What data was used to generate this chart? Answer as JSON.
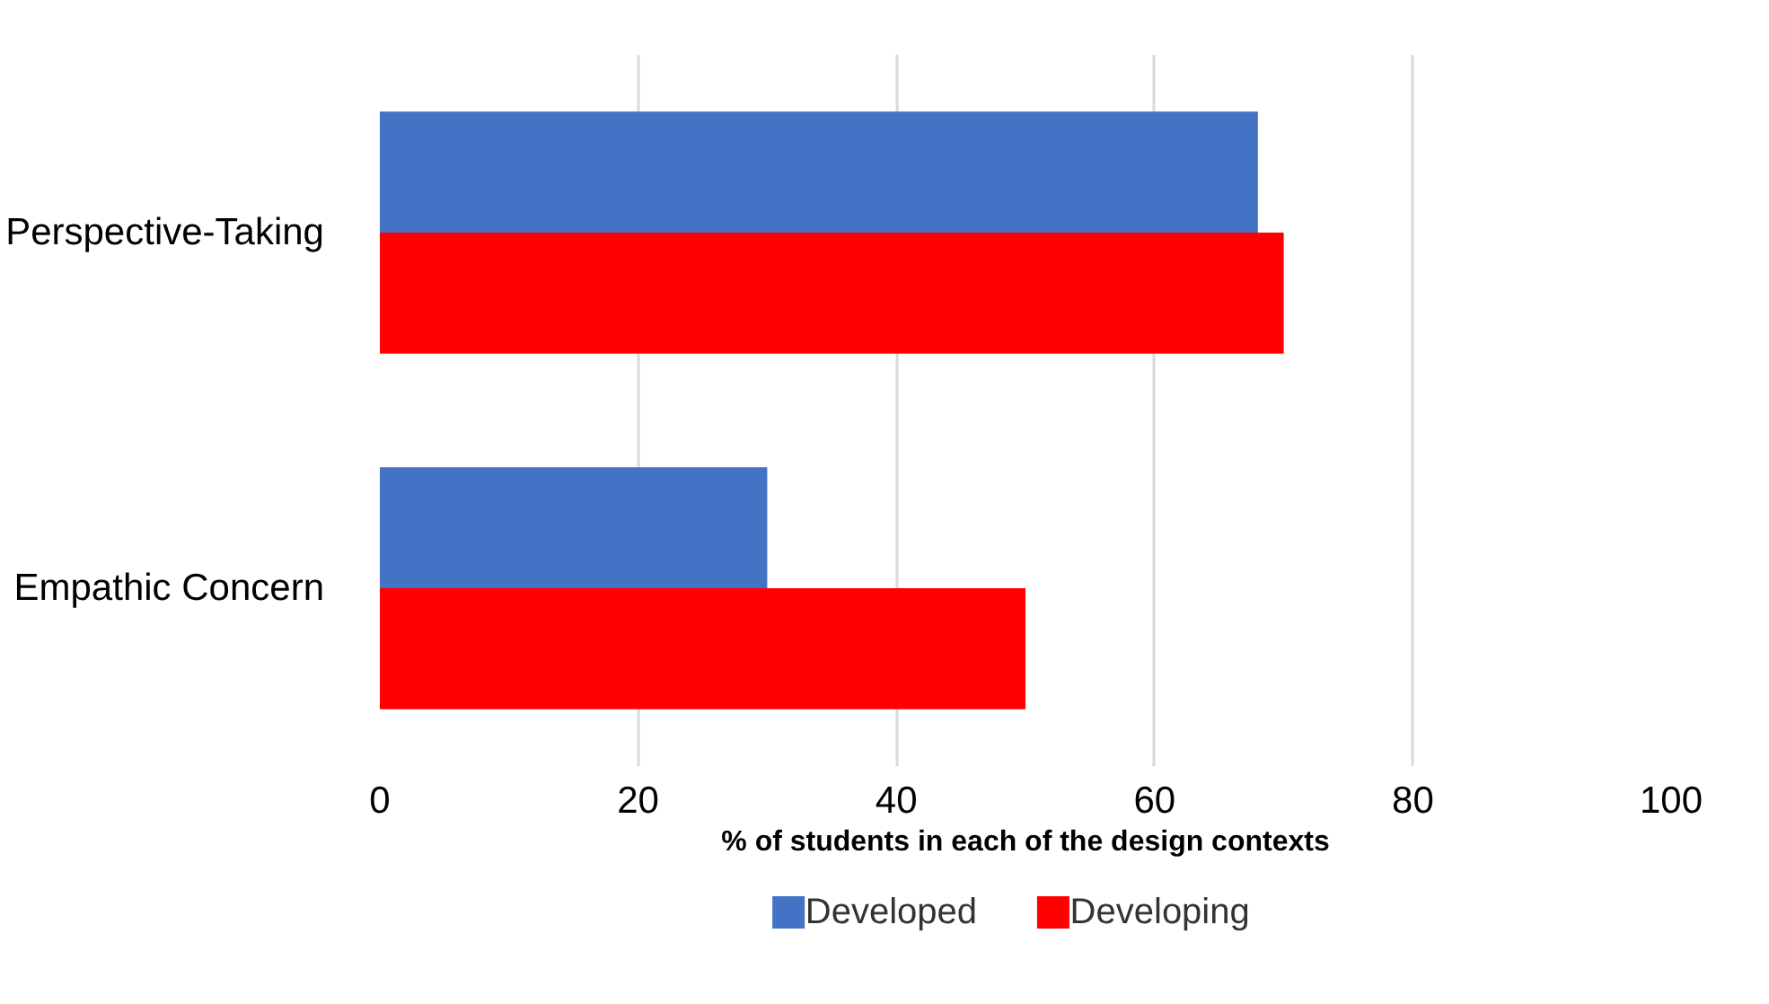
{
  "chart_data": {
    "type": "bar",
    "orientation": "horizontal",
    "categories": [
      "Perspective-Taking",
      "Empathic Concern"
    ],
    "series": [
      {
        "name": "Developed",
        "color": "#4472c4",
        "values": [
          68,
          30
        ]
      },
      {
        "name": "Developing",
        "color": "#ff0000",
        "values": [
          70,
          50
        ]
      }
    ],
    "xlabel": "% of students in each of the design contexts",
    "xlim": [
      0,
      100
    ],
    "xticks": [
      0,
      20,
      40,
      60,
      80,
      100
    ],
    "grid": "x",
    "legend": "bottom"
  }
}
